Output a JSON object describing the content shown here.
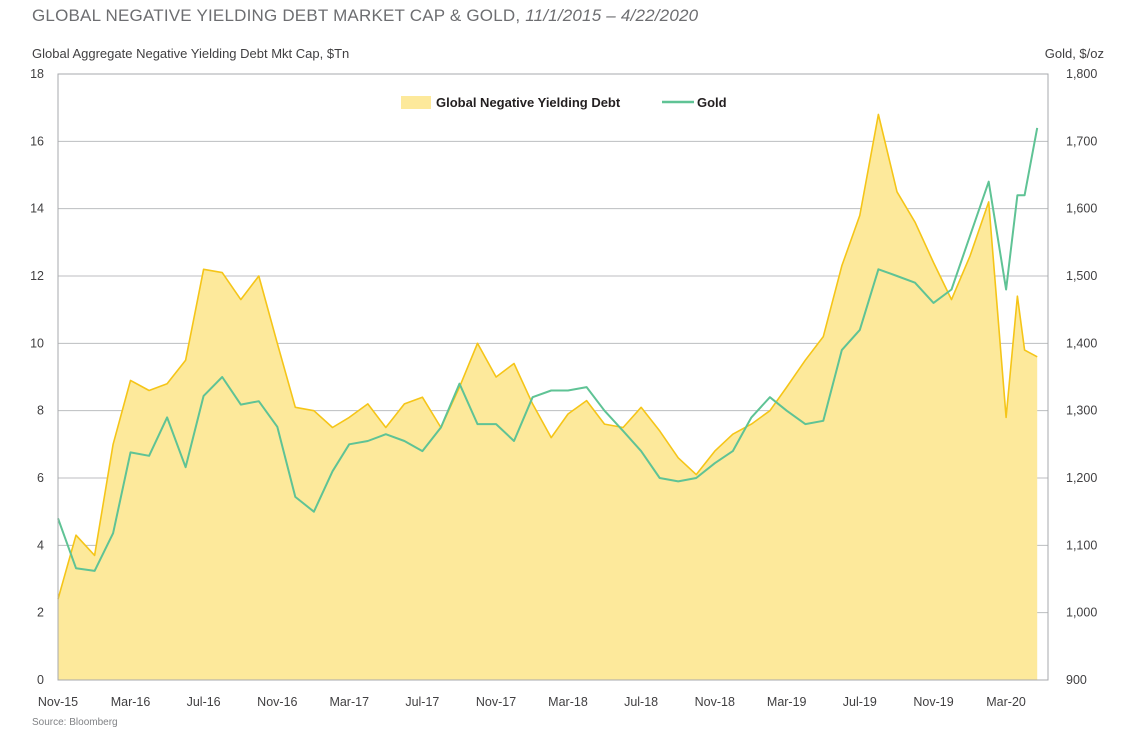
{
  "header": {
    "title_main": "GLOBAL NEGATIVE YIELDING DEBT MARKET CAP & GOLD,",
    "title_dates": "11/1/2015 – 4/22/2020",
    "left_axis_label": "Global Aggregate Negative Yielding Debt Mkt Cap, $Tn",
    "right_axis_label": "Gold, $/oz",
    "source": "Source: Bloomberg"
  },
  "colors": {
    "debt_fill": "#fde99b",
    "debt_line": "#f5c518",
    "gold_line": "#5fc395",
    "grid": "#bcbec0"
  },
  "chart_data": {
    "type": "area",
    "title": "GLOBAL NEGATIVE YIELDING DEBT MARKET CAP & GOLD, 11/1/2015 – 4/22/2020",
    "xlabel": "",
    "ylabel": "Global Aggregate Negative Yielding Debt Mkt Cap, $Tn",
    "y2label": "Gold, $/oz",
    "x_range": [
      "2015-11-01",
      "2020-04-22"
    ],
    "ylim": [
      0,
      18
    ],
    "y2lim": [
      900,
      1800
    ],
    "y_ticks": [
      "0",
      "2",
      "4",
      "6",
      "8",
      "10",
      "12",
      "14",
      "16",
      "18"
    ],
    "y2_ticks": [
      "900",
      "1,000",
      "1,100",
      "1,200",
      "1,300",
      "1,400",
      "1,500",
      "1,600",
      "1,700",
      "1,800"
    ],
    "x_ticks": [
      {
        "date": "2015-11-01",
        "label": "Nov-15"
      },
      {
        "date": "2016-03-01",
        "label": "Mar-16"
      },
      {
        "date": "2016-07-01",
        "label": "Jul-16"
      },
      {
        "date": "2016-11-01",
        "label": "Nov-16"
      },
      {
        "date": "2017-03-01",
        "label": "Mar-17"
      },
      {
        "date": "2017-07-01",
        "label": "Jul-17"
      },
      {
        "date": "2017-11-01",
        "label": "Nov-17"
      },
      {
        "date": "2018-03-01",
        "label": "Mar-18"
      },
      {
        "date": "2018-07-01",
        "label": "Jul-18"
      },
      {
        "date": "2018-11-01",
        "label": "Nov-18"
      },
      {
        "date": "2019-03-01",
        "label": "Mar-19"
      },
      {
        "date": "2019-07-01",
        "label": "Jul-19"
      },
      {
        "date": "2019-11-01",
        "label": "Nov-19"
      },
      {
        "date": "2020-03-01",
        "label": "Mar-20"
      }
    ],
    "grid": true,
    "legend_position": "top-center",
    "series": [
      {
        "name": "Global Negative Yielding Debt",
        "axis": "left",
        "style": "area",
        "points": [
          [
            "2015-11-01",
            2.4
          ],
          [
            "2015-12-01",
            4.3
          ],
          [
            "2016-01-01",
            3.7
          ],
          [
            "2016-02-01",
            7.0
          ],
          [
            "2016-03-01",
            8.9
          ],
          [
            "2016-04-01",
            8.6
          ],
          [
            "2016-05-01",
            8.8
          ],
          [
            "2016-06-01",
            9.5
          ],
          [
            "2016-07-01",
            12.2
          ],
          [
            "2016-08-01",
            12.1
          ],
          [
            "2016-09-01",
            11.3
          ],
          [
            "2016-10-01",
            12.0
          ],
          [
            "2016-11-01",
            10.0
          ],
          [
            "2016-12-01",
            8.1
          ],
          [
            "2017-01-01",
            8.0
          ],
          [
            "2017-02-01",
            7.5
          ],
          [
            "2017-03-01",
            7.8
          ],
          [
            "2017-04-01",
            8.2
          ],
          [
            "2017-05-01",
            7.5
          ],
          [
            "2017-06-01",
            8.2
          ],
          [
            "2017-07-01",
            8.4
          ],
          [
            "2017-08-01",
            7.5
          ],
          [
            "2017-09-01",
            8.7
          ],
          [
            "2017-10-01",
            10.0
          ],
          [
            "2017-11-01",
            9.0
          ],
          [
            "2017-12-01",
            9.4
          ],
          [
            "2018-01-01",
            8.2
          ],
          [
            "2018-02-01",
            7.2
          ],
          [
            "2018-03-01",
            7.9
          ],
          [
            "2018-04-01",
            8.3
          ],
          [
            "2018-05-01",
            7.6
          ],
          [
            "2018-06-01",
            7.5
          ],
          [
            "2018-07-01",
            8.1
          ],
          [
            "2018-08-01",
            7.4
          ],
          [
            "2018-09-01",
            6.6
          ],
          [
            "2018-10-01",
            6.1
          ],
          [
            "2018-11-01",
            6.8
          ],
          [
            "2018-12-01",
            7.3
          ],
          [
            "2019-01-01",
            7.6
          ],
          [
            "2019-02-01",
            8.0
          ],
          [
            "2019-03-01",
            8.7
          ],
          [
            "2019-04-01",
            9.5
          ],
          [
            "2019-05-01",
            10.2
          ],
          [
            "2019-06-01",
            12.3
          ],
          [
            "2019-07-01",
            13.8
          ],
          [
            "2019-08-01",
            16.8
          ],
          [
            "2019-09-01",
            14.5
          ],
          [
            "2019-10-01",
            13.6
          ],
          [
            "2019-11-01",
            12.4
          ],
          [
            "2019-12-01",
            11.3
          ],
          [
            "2020-01-01",
            12.6
          ],
          [
            "2020-02-01",
            14.2
          ],
          [
            "2020-03-01",
            7.8
          ],
          [
            "2020-03-20",
            11.4
          ],
          [
            "2020-04-01",
            9.8
          ],
          [
            "2020-04-22",
            9.6
          ]
        ]
      },
      {
        "name": "Gold",
        "axis": "right",
        "style": "line",
        "points": [
          [
            "2015-11-01",
            1140
          ],
          [
            "2015-12-01",
            1066
          ],
          [
            "2016-01-01",
            1062
          ],
          [
            "2016-02-01",
            1118
          ],
          [
            "2016-03-01",
            1238
          ],
          [
            "2016-04-01",
            1233
          ],
          [
            "2016-05-01",
            1290
          ],
          [
            "2016-06-01",
            1216
          ],
          [
            "2016-07-01",
            1322
          ],
          [
            "2016-08-01",
            1350
          ],
          [
            "2016-09-01",
            1309
          ],
          [
            "2016-10-01",
            1314
          ],
          [
            "2016-11-01",
            1276
          ],
          [
            "2016-12-01",
            1172
          ],
          [
            "2017-01-01",
            1150
          ],
          [
            "2017-02-01",
            1210
          ],
          [
            "2017-03-01",
            1250
          ],
          [
            "2017-04-01",
            1255
          ],
          [
            "2017-05-01",
            1265
          ],
          [
            "2017-06-01",
            1255
          ],
          [
            "2017-07-01",
            1240
          ],
          [
            "2017-08-01",
            1275
          ],
          [
            "2017-09-01",
            1340
          ],
          [
            "2017-10-01",
            1280
          ],
          [
            "2017-11-01",
            1280
          ],
          [
            "2017-12-01",
            1255
          ],
          [
            "2018-01-01",
            1320
          ],
          [
            "2018-02-01",
            1330
          ],
          [
            "2018-03-01",
            1330
          ],
          [
            "2018-04-01",
            1335
          ],
          [
            "2018-05-01",
            1300
          ],
          [
            "2018-06-01",
            1270
          ],
          [
            "2018-07-01",
            1240
          ],
          [
            "2018-08-01",
            1200
          ],
          [
            "2018-09-01",
            1195
          ],
          [
            "2018-10-01",
            1200
          ],
          [
            "2018-11-01",
            1222
          ],
          [
            "2018-12-01",
            1240
          ],
          [
            "2019-01-01",
            1290
          ],
          [
            "2019-02-01",
            1320
          ],
          [
            "2019-03-01",
            1300
          ],
          [
            "2019-04-01",
            1280
          ],
          [
            "2019-05-01",
            1285
          ],
          [
            "2019-06-01",
            1390
          ],
          [
            "2019-07-01",
            1420
          ],
          [
            "2019-08-01",
            1510
          ],
          [
            "2019-09-01",
            1500
          ],
          [
            "2019-10-01",
            1490
          ],
          [
            "2019-11-01",
            1460
          ],
          [
            "2019-12-01",
            1480
          ],
          [
            "2020-01-01",
            1560
          ],
          [
            "2020-02-01",
            1640
          ],
          [
            "2020-03-01",
            1480
          ],
          [
            "2020-03-20",
            1620
          ],
          [
            "2020-04-01",
            1620
          ],
          [
            "2020-04-22",
            1720
          ]
        ]
      }
    ]
  }
}
